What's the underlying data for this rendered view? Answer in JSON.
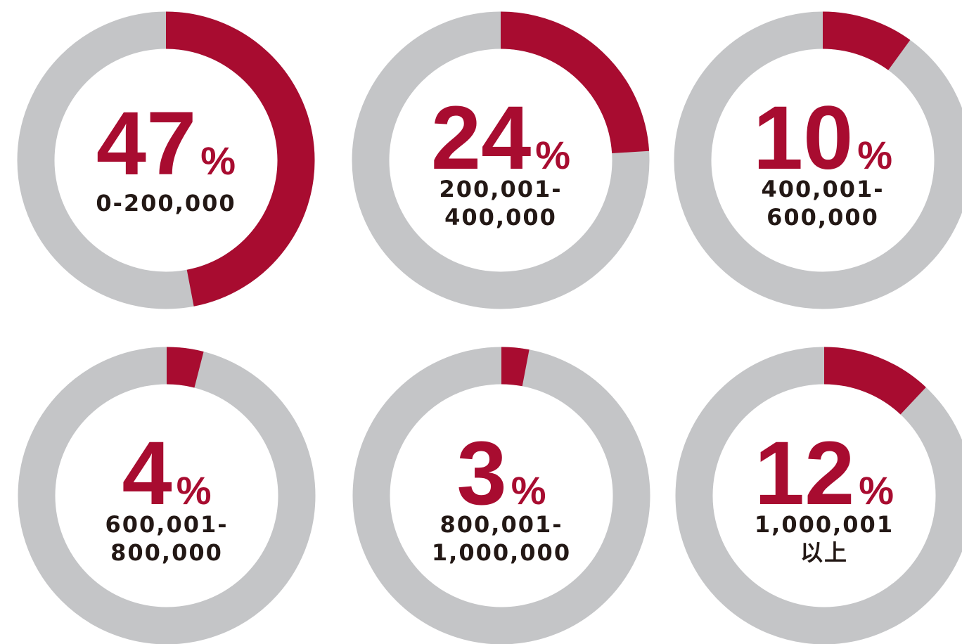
{
  "chart_data": [
    {
      "type": "donut",
      "values": [
        47
      ],
      "unit": "%",
      "label_lines": [
        "0-200,000"
      ],
      "color": "#a80c30",
      "track_color": "#c4c5c7"
    },
    {
      "type": "donut",
      "values": [
        24
      ],
      "unit": "%",
      "label_lines": [
        "200,001-",
        "400,000"
      ],
      "color": "#a80c30",
      "track_color": "#c4c5c7"
    },
    {
      "type": "donut",
      "values": [
        10
      ],
      "unit": "%",
      "label_lines": [
        "400,001-",
        "600,000"
      ],
      "color": "#a80c30",
      "track_color": "#c4c5c7"
    },
    {
      "type": "donut",
      "values": [
        4
      ],
      "unit": "%",
      "label_lines": [
        "600,001-",
        "800,000"
      ],
      "color": "#a80c30",
      "track_color": "#c4c5c7"
    },
    {
      "type": "donut",
      "values": [
        3
      ],
      "unit": "%",
      "label_lines": [
        "800,001-",
        "1,000,000"
      ],
      "color": "#a80c30",
      "track_color": "#c4c5c7"
    },
    {
      "type": "donut",
      "values": [
        12
      ],
      "unit": "%",
      "label_lines": [
        "1,000,001",
        "以上"
      ],
      "color": "#a80c30",
      "track_color": "#c4c5c7"
    }
  ]
}
